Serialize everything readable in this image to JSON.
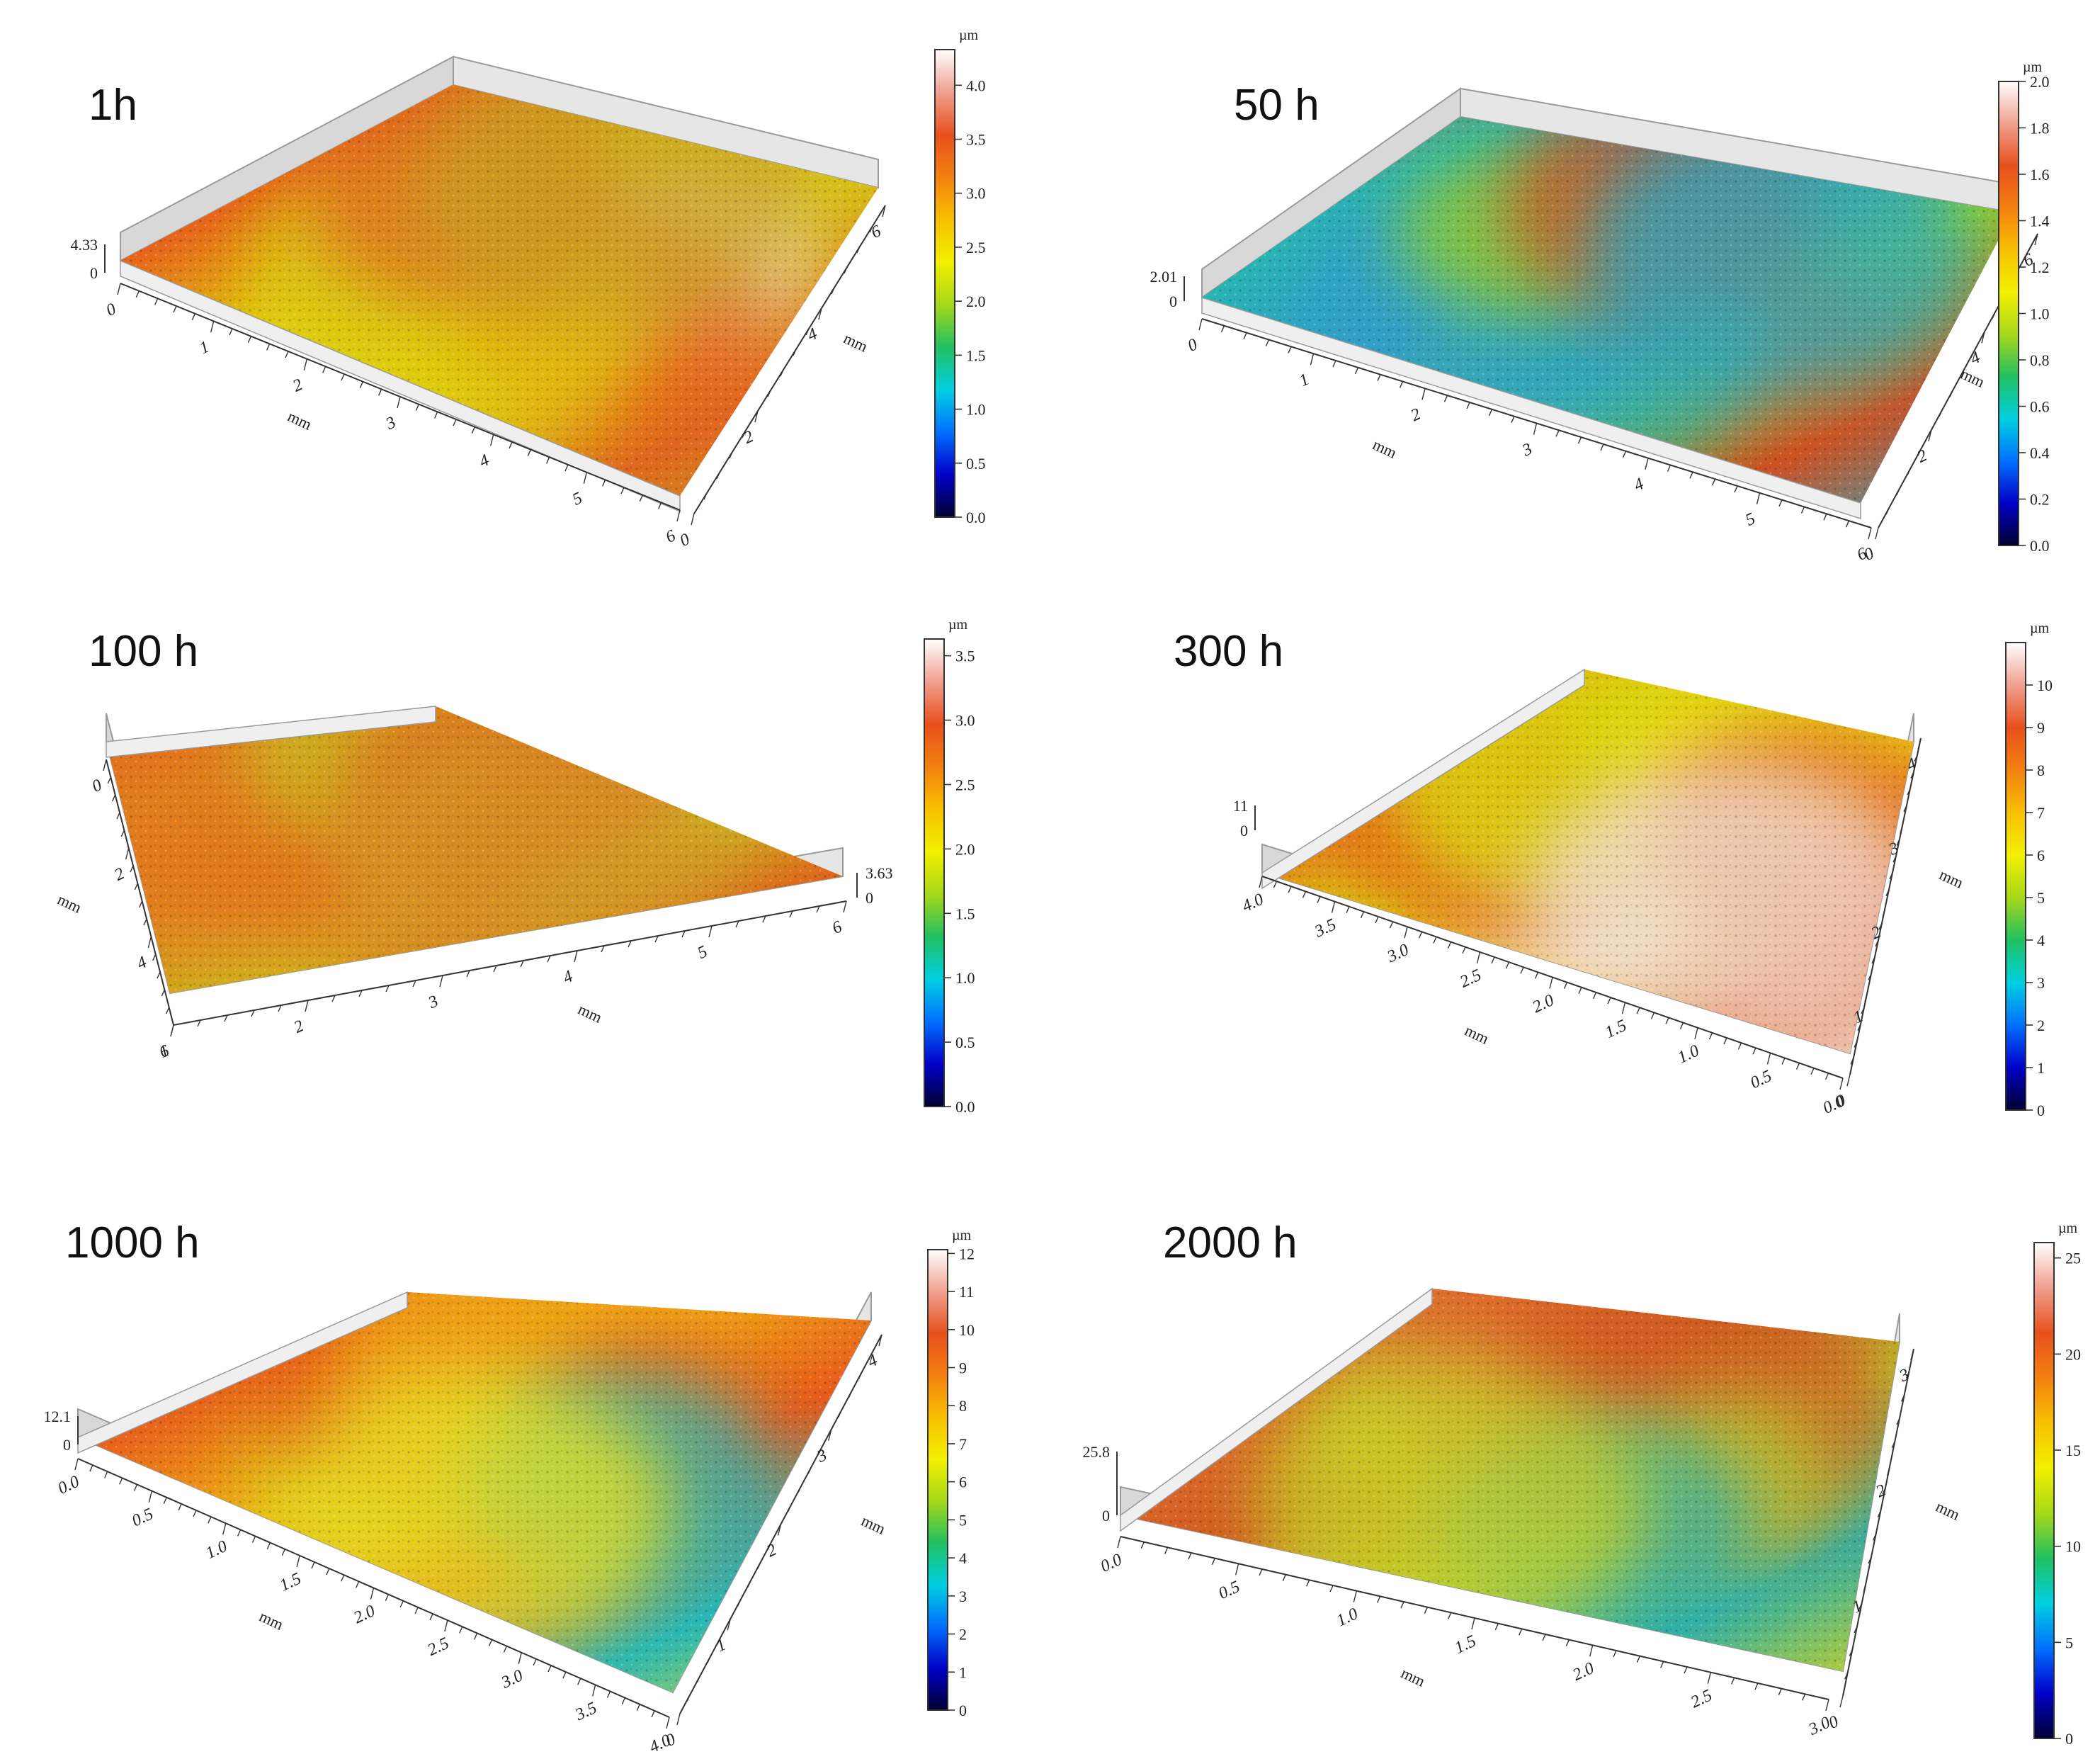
{
  "figure_title": "",
  "colors": {
    "colormap": [
      "#000033",
      "#0000c8",
      "#0070ff",
      "#00d0e0",
      "#20c060",
      "#a8d818",
      "#f2f000",
      "#f8c000",
      "#f48010",
      "#e8501c",
      "#f0a090",
      "#ffffff"
    ],
    "frame": "#9a9a9a",
    "wall": "#e6e6e6"
  },
  "chart_data": [
    {
      "type": "surface3d",
      "title": "1h",
      "unit": "µm",
      "z_max_label": "4.33",
      "z_min_label": "0",
      "colorbar_ticks": [
        "0.0",
        "0.5",
        "1.0",
        "1.5",
        "2.0",
        "2.5",
        "3.0",
        "3.5",
        "4.0"
      ],
      "colorbar_range": [
        0,
        4.33
      ],
      "x_axis": {
        "label": "mm",
        "ticks": [
          "0",
          "1",
          "2",
          "3",
          "4",
          "5",
          "6"
        ]
      },
      "y_axis": {
        "label": "mm",
        "ticks": [
          "0",
          "2",
          "4",
          "6"
        ]
      },
      "surface_colors": [
        "#f2f0f0",
        "#e85a1c",
        "#e0d010",
        "#d8c418",
        "#e06a20",
        "#c8a020"
      ]
    },
    {
      "type": "surface3d",
      "title": "50 h",
      "unit": "µm",
      "z_max_label": "2.01",
      "z_min_label": "0",
      "colorbar_ticks": [
        "0.0",
        "0.2",
        "0.4",
        "0.6",
        "0.8",
        "1.0",
        "1.2",
        "1.4",
        "1.6",
        "1.8",
        "2.0"
      ],
      "colorbar_range": [
        0,
        2.0
      ],
      "x_axis": {
        "label": "mm",
        "ticks": [
          "0",
          "1",
          "2",
          "3",
          "4",
          "5",
          "6"
        ]
      },
      "y_axis": {
        "label": "mm",
        "ticks": [
          "0",
          "2",
          "4",
          "6"
        ]
      },
      "surface_colors": [
        "#e8601c",
        "#28b8b0",
        "#30a0c8",
        "#98d020",
        "#d45020",
        "#2aa8c0"
      ]
    },
    {
      "type": "surface3d",
      "title": "100 h",
      "unit": "µm",
      "z_max_label": "3.63",
      "z_min_label": "0",
      "colorbar_ticks": [
        "0.0",
        "0.5",
        "1.0",
        "1.5",
        "2.0",
        "2.5",
        "3.0",
        "3.5"
      ],
      "colorbar_range": [
        0,
        3.63
      ],
      "x_axis": {
        "label": "mm",
        "ticks": [
          "1",
          "2",
          "3",
          "4",
          "5",
          "6"
        ]
      },
      "y_axis": {
        "label": "mm",
        "ticks": [
          "0",
          "2",
          "4",
          "6"
        ]
      },
      "surface_colors": [
        "#e06020",
        "#d8b020",
        "#e46c1c",
        "#c8c020",
        "#e0601c",
        "#d49828"
      ]
    },
    {
      "type": "surface3d",
      "title": "300 h",
      "unit": "µm",
      "z_max_label": "11",
      "z_min_label": "0",
      "colorbar_ticks": [
        "0",
        "1",
        "2",
        "3",
        "4",
        "5",
        "6",
        "7",
        "8",
        "9",
        "10"
      ],
      "colorbar_range": [
        0,
        11
      ],
      "x_axis": {
        "label": "mm",
        "ticks": [
          "4.0",
          "3.5",
          "3.0",
          "2.5",
          "2.0",
          "1.5",
          "1.0",
          "0.5",
          "0.0"
        ]
      },
      "y_axis": {
        "label": "mm",
        "ticks": [
          "0",
          "1",
          "2",
          "3",
          "4"
        ]
      },
      "surface_colors": [
        "#f4e8e4",
        "#e85a1c",
        "#d8e010",
        "#ecd418",
        "#e4601c",
        "#f0e0dc"
      ]
    },
    {
      "type": "surface3d",
      "title": "1000 h",
      "unit": "µm",
      "z_max_label": "12.1",
      "z_min_label": "0",
      "colorbar_ticks": [
        "0",
        "1",
        "2",
        "3",
        "4",
        "5",
        "6",
        "7",
        "8",
        "9",
        "10",
        "11",
        "12"
      ],
      "colorbar_range": [
        0,
        12.1
      ],
      "x_axis": {
        "label": "mm",
        "ticks": [
          "0.0",
          "0.5",
          "1.0",
          "1.5",
          "2.0",
          "2.5",
          "3.0",
          "3.5",
          "4.0"
        ]
      },
      "y_axis": {
        "label": "mm",
        "ticks": [
          "0",
          "1",
          "2",
          "3",
          "4"
        ]
      },
      "surface_colors": [
        "#d8d818",
        "#e8601c",
        "#f0b018",
        "#e85c1c",
        "#28b8b8",
        "#e4e020"
      ]
    },
    {
      "type": "surface3d",
      "title": "2000 h",
      "unit": "µm",
      "z_max_label": "25.8",
      "z_min_label": "0",
      "colorbar_ticks": [
        "0",
        "5",
        "10",
        "15",
        "20",
        "25"
      ],
      "colorbar_range": [
        0,
        25.8
      ],
      "x_axis": {
        "label": "mm",
        "ticks": [
          "0.0",
          "0.5",
          "1.0",
          "1.5",
          "2.0",
          "2.5",
          "3.0"
        ]
      },
      "y_axis": {
        "label": "mm",
        "ticks": [
          "0",
          "1",
          "2",
          "3"
        ]
      },
      "surface_colors": [
        "#c8c428",
        "#e07030",
        "#d05c20",
        "#b8c830",
        "#30b0a8",
        "#c8d028"
      ]
    }
  ]
}
